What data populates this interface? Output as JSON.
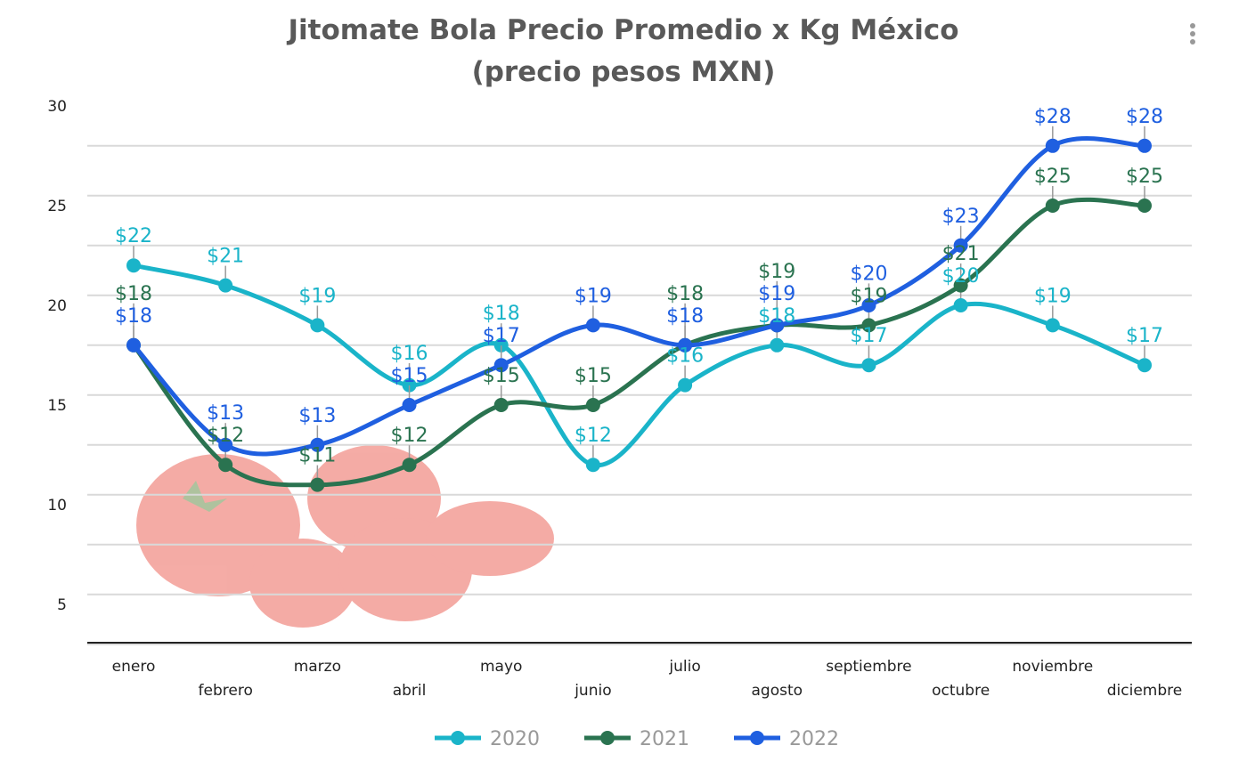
{
  "chart_data": {
    "type": "line",
    "title": [
      "Jitomate Bola Precio Promedio x Kg México",
      "(precio pesos MXN)"
    ],
    "categories": [
      "enero",
      "febrero",
      "marzo",
      "abril",
      "mayo",
      "junio",
      "julio",
      "agosto",
      "septiembre",
      "octubre",
      "noviembre",
      "diciembre"
    ],
    "series": [
      {
        "name": "2020",
        "color": "#1ab4c9",
        "values": [
          22,
          21,
          19,
          16,
          18,
          12,
          16,
          18,
          17,
          20,
          19,
          17
        ]
      },
      {
        "name": "2021",
        "color": "#2a7350",
        "values": [
          18,
          12,
          11,
          12,
          15,
          15,
          18,
          19,
          19,
          21,
          25,
          25
        ]
      },
      {
        "name": "2022",
        "color": "#1f5fe0",
        "values": [
          18,
          13,
          13,
          15,
          17,
          19,
          18,
          19,
          20,
          23,
          28,
          28
        ]
      }
    ],
    "data_label_prefix": "$",
    "ylim": [
      3,
      30
    ],
    "yticks": [
      5,
      10,
      15,
      20,
      25,
      30
    ],
    "grid_step": 2.5,
    "grid": true,
    "legend": "bottom",
    "xlabel": "",
    "ylabel": ""
  }
}
